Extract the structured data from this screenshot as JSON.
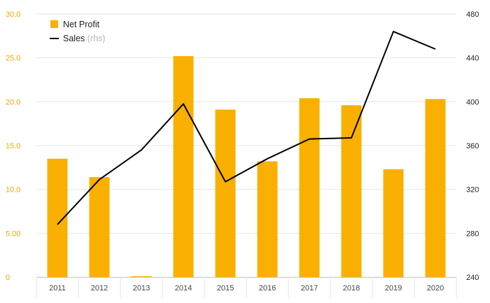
{
  "chart_data": {
    "type": "bar+line",
    "categories": [
      "2011",
      "2012",
      "2013",
      "2014",
      "2015",
      "2016",
      "2017",
      "2018",
      "2019",
      "2020"
    ],
    "series": [
      {
        "name": "Net Profit",
        "type": "bar",
        "axis": "left",
        "color": "#f9b000",
        "values": [
          13.5,
          11.4,
          0.1,
          25.2,
          19.1,
          13.2,
          20.4,
          19.6,
          12.3,
          20.3
        ]
      },
      {
        "name": "Sales",
        "name_suffix": "(rhs)",
        "type": "line",
        "axis": "right",
        "color": "#000000",
        "values": [
          288,
          329,
          356,
          398,
          327,
          348,
          366,
          367,
          464,
          448
        ]
      }
    ],
    "y_left": {
      "lim": [
        0,
        30
      ],
      "tick_values": [
        0,
        5,
        10,
        15,
        20,
        25,
        30
      ],
      "tick_labels": [
        "0",
        "5.00",
        "10.0",
        "15.0",
        "20.0",
        "25.0",
        "30.0"
      ],
      "color": "#f0a800"
    },
    "y_right": {
      "lim": [
        240,
        480
      ],
      "tick_values": [
        240,
        280,
        320,
        360,
        400,
        440,
        480
      ],
      "tick_labels": [
        "240",
        "280",
        "320",
        "360",
        "400",
        "440",
        "480"
      ]
    },
    "grid": true,
    "legend_position": "top-left"
  }
}
